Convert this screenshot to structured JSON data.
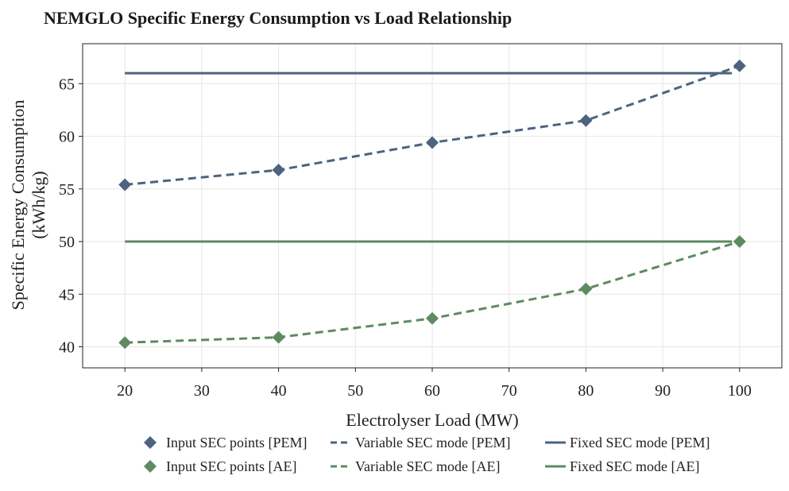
{
  "chart_data": {
    "type": "line",
    "title": "NEMGLO Specific Energy Consumption vs Load Relationship",
    "xlabel": "Electrolyser Load (MW)",
    "ylabel_line1": "Specific Energy Consumption",
    "ylabel_line2": "(kWh/kg)",
    "xlim": [
      14.5,
      105.5
    ],
    "ylim": [
      38.0,
      68.8
    ],
    "xticks": [
      20,
      30,
      40,
      50,
      60,
      70,
      80,
      90,
      100
    ],
    "yticks": [
      40,
      45,
      50,
      55,
      60,
      65
    ],
    "grid": true,
    "legend_position": "bottom",
    "series": [
      {
        "name": "Input SEC points [PEM]",
        "kind": "points",
        "color": "#4d6380",
        "x": [
          20,
          40,
          60,
          80,
          100
        ],
        "y": [
          55.4,
          56.8,
          59.4,
          61.5,
          66.7
        ]
      },
      {
        "name": "Variable SEC mode [PEM]",
        "kind": "dashed",
        "color": "#4d6380",
        "x": [
          20,
          40,
          60,
          80,
          100
        ],
        "y": [
          55.4,
          56.8,
          59.4,
          61.5,
          66.7
        ]
      },
      {
        "name": "Fixed SEC mode [PEM]",
        "kind": "solid",
        "color": "#4d6380",
        "x": [
          20,
          99
        ],
        "y": [
          66.0,
          66.0
        ]
      },
      {
        "name": "Input SEC points [AE]",
        "kind": "points",
        "color": "#5e8a62",
        "x": [
          20,
          40,
          60,
          80,
          100
        ],
        "y": [
          40.4,
          40.9,
          42.7,
          45.5,
          50.0
        ]
      },
      {
        "name": "Variable SEC mode [AE]",
        "kind": "dashed",
        "color": "#5e8a62",
        "x": [
          20,
          40,
          60,
          80,
          100
        ],
        "y": [
          40.4,
          40.9,
          42.7,
          45.5,
          50.0
        ]
      },
      {
        "name": "Fixed SEC mode [AE]",
        "kind": "solid",
        "color": "#5e8a62",
        "x": [
          20,
          99
        ],
        "y": [
          50.0,
          50.0
        ]
      }
    ],
    "legend": [
      [
        "Input SEC points [PEM]",
        "Variable SEC mode [PEM]",
        "Fixed SEC mode [PEM]"
      ],
      [
        "Input SEC points [AE]",
        "Variable SEC mode [AE]",
        "Fixed SEC mode [AE]"
      ]
    ]
  }
}
